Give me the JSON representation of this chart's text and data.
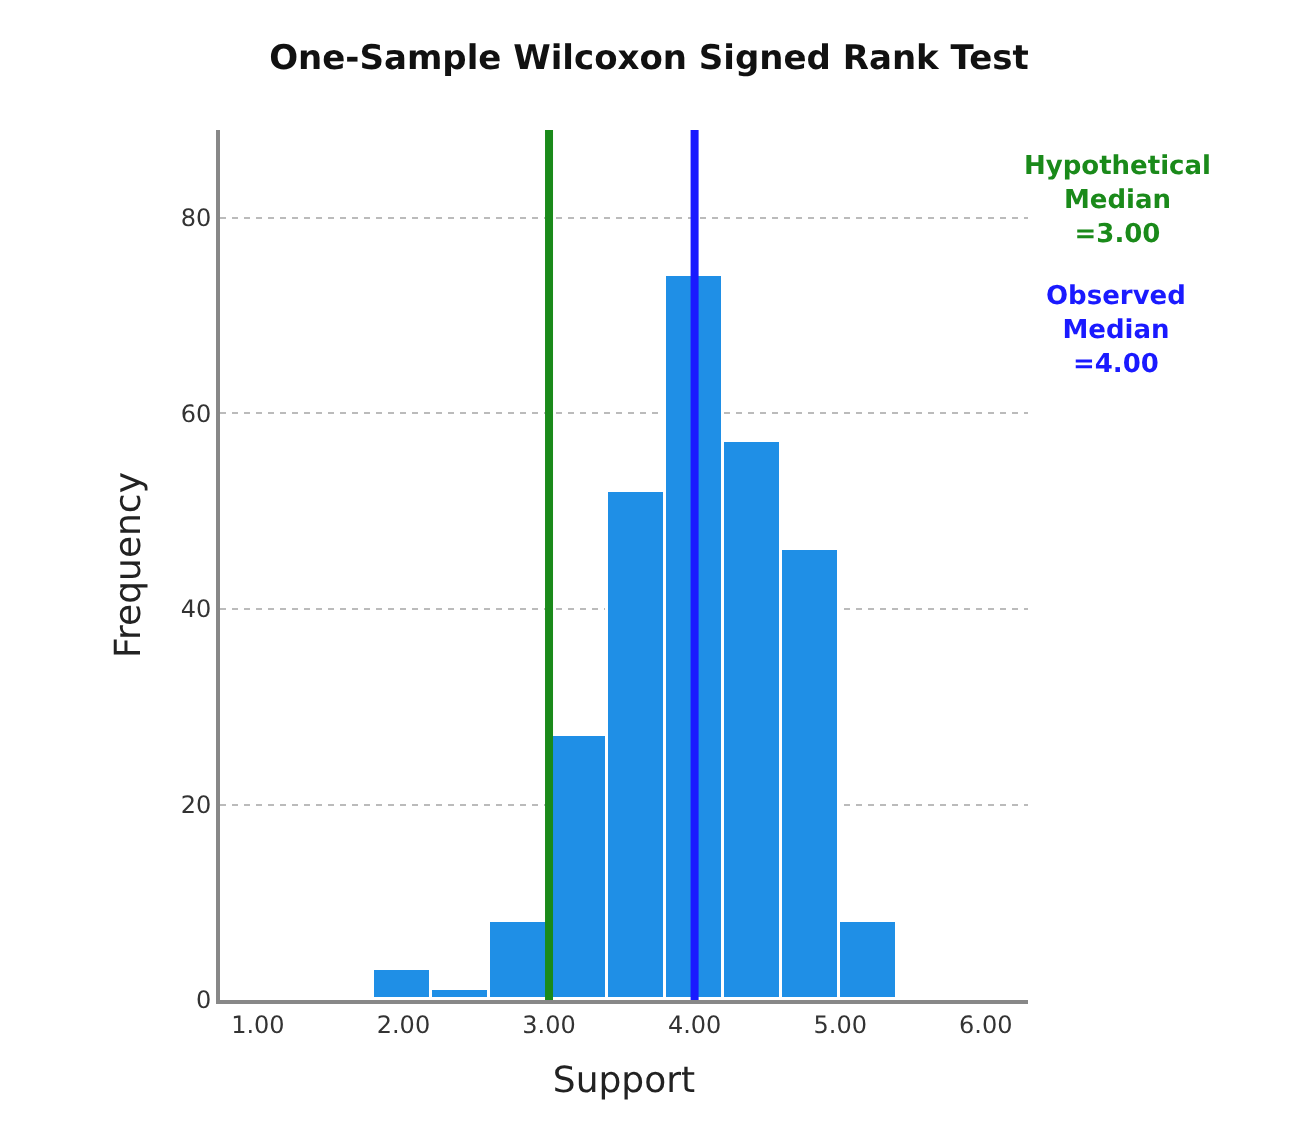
{
  "chart_data": {
    "type": "histogram",
    "title": "One-Sample Wilcoxon Signed Rank Test",
    "xlabel": "Support",
    "ylabel": "Frequency",
    "bins": [
      1.8,
      2.2,
      2.6,
      3.0,
      3.4,
      3.8,
      4.2,
      4.6,
      5.0,
      5.4
    ],
    "values": [
      3,
      1,
      8,
      27,
      52,
      74,
      57,
      46,
      8
    ],
    "color": "#1f8fe6",
    "xlim": [
      0.74,
      6.29
    ],
    "xticks": [
      {
        "value": 1,
        "label": "1.00"
      },
      {
        "value": 2,
        "label": "2.00"
      },
      {
        "value": 3,
        "label": "3.00"
      },
      {
        "value": 4,
        "label": "4.00"
      },
      {
        "value": 5,
        "label": "5.00"
      },
      {
        "value": 6,
        "label": "6.00"
      }
    ],
    "ylim": [
      0,
      89
    ],
    "yticks": [
      0,
      20,
      40,
      60,
      80
    ],
    "grid": "y",
    "ref_lines": [
      {
        "axis": "x",
        "value": 3.0,
        "label": "Hypothetical\nMedian\n=3.00",
        "color": "#1a8a1a"
      },
      {
        "axis": "x",
        "value": 4.0,
        "label": "Observed\nMedian\n=4.00",
        "color": "#1a1aff"
      }
    ]
  }
}
